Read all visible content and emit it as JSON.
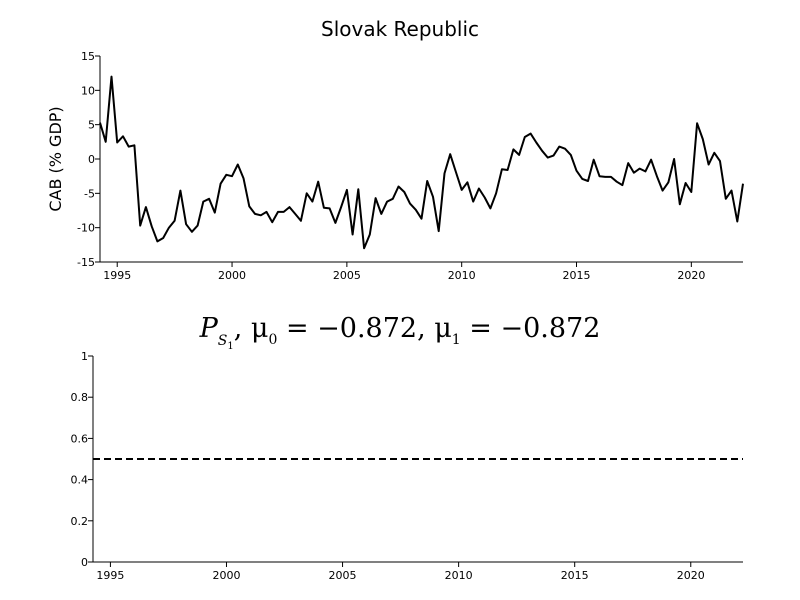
{
  "chart_data": [
    {
      "type": "line",
      "title": "Slovak Republic",
      "xlabel": "",
      "ylabel": "CAB (% GDP)",
      "xlim": [
        1994.25,
        2022.25
      ],
      "ylim": [
        -15,
        15
      ],
      "x_ticks": [
        1995,
        2000,
        2005,
        2010,
        2015,
        2020
      ],
      "y_ticks": [
        -15,
        -10,
        -5,
        0,
        5,
        10,
        15
      ],
      "grid": false,
      "series": [
        {
          "color": "#000000",
          "style": "solid",
          "x": [
            1994.25,
            1994.5,
            1994.75,
            1995,
            1995.25,
            1995.5,
            1995.75,
            1996,
            1996.25,
            1996.5,
            1996.75,
            1997,
            1997.25,
            1997.5,
            1997.75,
            1998,
            1998.25,
            1998.5,
            1998.75,
            1999,
            1999.25,
            1999.5,
            1999.75,
            2000,
            2000.25,
            2000.5,
            2000.75,
            2001,
            2001.25,
            2001.5,
            2001.75,
            2002,
            2002.25,
            2002.5,
            2002.75,
            2003,
            2003.25,
            2003.5,
            2003.75,
            2004,
            2004.25,
            2004.5,
            2004.75,
            2005,
            2005.25,
            2005.5,
            2005.75,
            2006,
            2006.25,
            2006.5,
            2006.75,
            2007,
            2007.25,
            2007.5,
            2007.75,
            2008,
            2008.25,
            2008.5,
            2008.75,
            2009,
            2009.25,
            2009.5,
            2009.75,
            2010,
            2010.25,
            2010.5,
            2010.75,
            2011,
            2011.25,
            2011.5,
            2011.75,
            2012,
            2012.25,
            2012.5,
            2012.75,
            2013,
            2013.25,
            2013.5,
            2013.75,
            2014,
            2014.25,
            2014.5,
            2014.75,
            2015,
            2015.25,
            2015.5,
            2015.75,
            2016,
            2016.25,
            2016.5,
            2016.75,
            2017,
            2017.25,
            2017.5,
            2017.75,
            2018,
            2018.25,
            2018.5,
            2018.75,
            2019,
            2019.25,
            2019.5,
            2019.75,
            2020,
            2020.25,
            2020.5,
            2020.75,
            2021,
            2021.25,
            2021.5,
            2021.75,
            2022,
            2022.25
          ],
          "y": [
            5.3,
            2.5,
            12,
            2.4,
            3.3,
            1.8,
            2,
            -9.7,
            -7,
            -9.8,
            -12,
            -11.5,
            -10,
            -9,
            -4.6,
            -9.5,
            -10.6,
            -9.7,
            -6.2,
            -5.8,
            -7.8,
            -3.6,
            -2.3,
            -2.5,
            -0.8,
            -2.8,
            -6.9,
            -8,
            -8.2,
            -7.7,
            -9.2,
            -7.7,
            -7.7,
            -7,
            -8,
            -9,
            -5,
            -6.2,
            -3.3,
            -7.1,
            -7.2,
            -9.3,
            -7,
            -4.5,
            -11,
            -4.4,
            -13,
            -11,
            -5.7,
            -8,
            -6.2,
            -5.8,
            -4,
            -4.8,
            -6.5,
            -7.4,
            -8.7,
            -3.2,
            -5.5,
            -10.5,
            -2.1,
            0.7,
            -1.9,
            -4.5,
            -3.4,
            -6.2,
            -4.3,
            -5.6,
            -7.2,
            -5,
            -1.5,
            -1.6,
            1.4,
            0.6,
            3.2,
            3.7,
            2.4,
            1.2,
            0.2,
            0.5,
            1.8,
            1.5,
            0.6,
            -1.7,
            -2.9,
            -3.2,
            -0.1,
            -2.5,
            -2.6,
            -2.6,
            -3.3,
            -3.8,
            -0.6,
            -2,
            -1.4,
            -1.8,
            -0.1,
            -2.5,
            -4.6,
            -3.4,
            0,
            -6.6,
            -3.5,
            -4.8,
            5.2,
            2.9,
            -0.8,
            0.9,
            -0.3,
            -5.8,
            -4.6,
            -9.1,
            -3.6
          ]
        }
      ]
    },
    {
      "type": "line",
      "title": "",
      "xlabel": "",
      "ylabel": "",
      "xlim": [
        1994.25,
        2022.25
      ],
      "ylim": [
        0,
        1
      ],
      "x_ticks": [
        1995,
        2000,
        2005,
        2010,
        2015,
        2020
      ],
      "y_ticks": [
        0,
        0.2,
        0.4,
        0.6,
        0.8,
        1
      ],
      "grid": false,
      "series": [
        {
          "color": "#000000",
          "style": "dashed",
          "x": [
            1994.25,
            2022.25
          ],
          "y": [
            0.5,
            0.5
          ]
        }
      ]
    }
  ],
  "lower_title": {
    "P": "P",
    "S": "S",
    "one": "1",
    "mid": ", μ",
    "zero": "0",
    "eq1": " = −0.872, μ",
    "sub1": "1",
    "eq2": " = −0.872"
  }
}
